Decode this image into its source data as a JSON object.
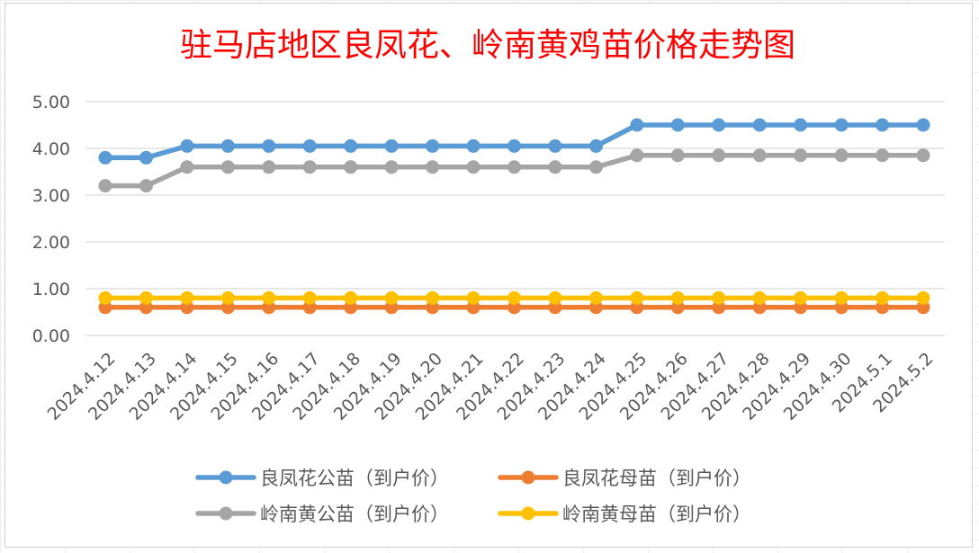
{
  "chart_data": {
    "type": "line",
    "title": "驻马店地区良凤花、岭南黄鸡苗价格走势图",
    "xlabel": "",
    "ylabel": "",
    "ylim": [
      0,
      5
    ],
    "y_ticks": [
      "0.00",
      "1.00",
      "2.00",
      "3.00",
      "4.00",
      "5.00"
    ],
    "grid": true,
    "legend_position": "bottom",
    "categories": [
      "2024.4.12",
      "2024.4.13",
      "2024.4.14",
      "2024.4.15",
      "2024.4.16",
      "2024.4.17",
      "2024.4.18",
      "2024.4.19",
      "2024.4.20",
      "2024.4.21",
      "2024.4.22",
      "2024.4.23",
      "2024.4.24",
      "2024.4.25",
      "2024.4.26",
      "2024.4.27",
      "2024.4.28",
      "2024.4.29",
      "2024.4.30",
      "2024.5.1",
      "2024.5.2"
    ],
    "series": [
      {
        "name": "良凤花公苗（到户价）",
        "color": "#5b9bd5",
        "values": [
          3.8,
          3.8,
          4.05,
          4.05,
          4.05,
          4.05,
          4.05,
          4.05,
          4.05,
          4.05,
          4.05,
          4.05,
          4.05,
          4.5,
          4.5,
          4.5,
          4.5,
          4.5,
          4.5,
          4.5,
          4.5
        ]
      },
      {
        "name": "良凤花母苗（到户价）",
        "color": "#ed7d31",
        "values": [
          0.6,
          0.6,
          0.6,
          0.6,
          0.6,
          0.6,
          0.6,
          0.6,
          0.6,
          0.6,
          0.6,
          0.6,
          0.6,
          0.6,
          0.6,
          0.6,
          0.6,
          0.6,
          0.6,
          0.6,
          0.6
        ]
      },
      {
        "name": "岭南黄公苗（到户价）",
        "color": "#a5a5a5",
        "values": [
          3.2,
          3.2,
          3.6,
          3.6,
          3.6,
          3.6,
          3.6,
          3.6,
          3.6,
          3.6,
          3.6,
          3.6,
          3.6,
          3.85,
          3.85,
          3.85,
          3.85,
          3.85,
          3.85,
          3.85,
          3.85
        ]
      },
      {
        "name": "岭南黄母苗（到户价）",
        "color": "#ffc000",
        "values": [
          0.8,
          0.8,
          0.8,
          0.8,
          0.8,
          0.8,
          0.8,
          0.8,
          0.8,
          0.8,
          0.8,
          0.8,
          0.8,
          0.8,
          0.8,
          0.8,
          0.8,
          0.8,
          0.8,
          0.8,
          0.8
        ]
      }
    ]
  }
}
